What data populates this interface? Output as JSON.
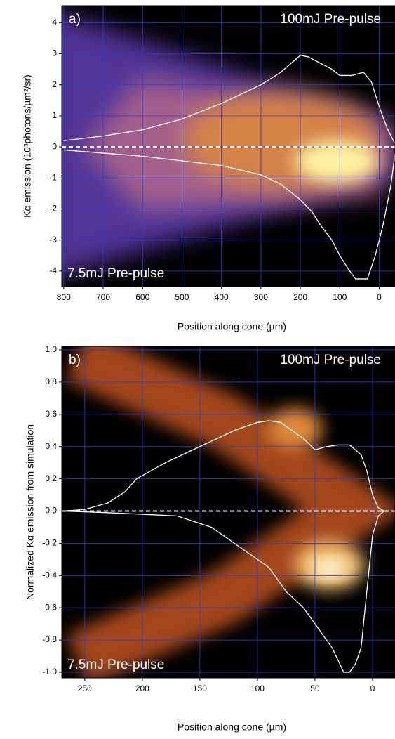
{
  "chart_data": [
    {
      "type": "line",
      "panel_label": "a)",
      "top_label": "100mJ Pre-pulse",
      "bottom_label": "7.5mJ Pre-pulse",
      "x_label": "Position along cone (µm)",
      "y_label": "Kα emission (10³photons/µm²/sr)",
      "xlim": [
        805,
        -40
      ],
      "ylim": [
        -4.5,
        4.55
      ],
      "xticks": [
        800,
        700,
        600,
        500,
        400,
        300,
        200,
        100,
        0
      ],
      "yticks": [
        -4,
        -3,
        -2,
        -1,
        0,
        1,
        2,
        3,
        4
      ],
      "grid": true,
      "series": [
        {
          "name": "100mJ Pre-pulse",
          "color": "#ffffff",
          "x": [
            800,
            700,
            600,
            500,
            400,
            300,
            250,
            200,
            180,
            150,
            120,
            100,
            70,
            40,
            20,
            0,
            -20,
            -40
          ],
          "values": [
            0.2,
            0.35,
            0.55,
            0.9,
            1.4,
            2.0,
            2.4,
            2.95,
            2.9,
            2.7,
            2.5,
            2.3,
            2.3,
            2.4,
            2.1,
            1.3,
            0.6,
            0.1
          ]
        },
        {
          "name": "7.5mJ Pre-pulse",
          "color": "#ffffff",
          "x": [
            800,
            700,
            600,
            500,
            400,
            300,
            250,
            200,
            170,
            150,
            120,
            100,
            80,
            60,
            30,
            10,
            -10,
            -30,
            -40
          ],
          "values": [
            -0.1,
            -0.2,
            -0.3,
            -0.45,
            -0.6,
            -0.9,
            -1.2,
            -1.7,
            -2.1,
            -2.5,
            -3.0,
            -3.5,
            -3.9,
            -4.25,
            -4.25,
            -3.5,
            -2.5,
            -1.2,
            -0.2
          ]
        }
      ]
    },
    {
      "type": "line",
      "panel_label": "b)",
      "top_label": "100mJ Pre-pulse",
      "bottom_label": "7.5mJ Pre-pulse",
      "x_label": "Position along cone (µm)",
      "y_label": "Normalized Kα emission from simulation",
      "xlim": [
        270,
        -19.5
      ],
      "ylim": [
        -1.035,
        1.022
      ],
      "xticks": [
        250,
        200,
        150,
        100,
        50,
        0
      ],
      "yticks": [
        {
          "value": -1,
          "label": "-1.0"
        },
        -0.8,
        -0.6,
        -0.4,
        -0.2,
        {
          "value": 0,
          "label": "0.0"
        },
        0.2,
        0.4,
        0.6,
        0.8,
        {
          "value": 1,
          "label": "1.0"
        }
      ],
      "grid": true,
      "series": [
        {
          "name": "100mJ Pre-pulse",
          "color": "#ffffff",
          "x": [
            270,
            250,
            230,
            215,
            205,
            180,
            150,
            120,
            100,
            90,
            80,
            70,
            60,
            50,
            40,
            30,
            20,
            10,
            5,
            0,
            -5,
            -10
          ],
          "values": [
            0,
            0.01,
            0.05,
            0.12,
            0.2,
            0.3,
            0.4,
            0.5,
            0.55,
            0.56,
            0.55,
            0.5,
            0.45,
            0.38,
            0.4,
            0.41,
            0.41,
            0.35,
            0.25,
            0.1,
            0.02,
            0
          ]
        },
        {
          "name": "7.5mJ Pre-pulse",
          "color": "#ffffff",
          "x": [
            270,
            230,
            170,
            140,
            110,
            90,
            75,
            60,
            45,
            35,
            25,
            20,
            15,
            10,
            5,
            0,
            -5,
            -10
          ],
          "values": [
            0,
            -0.01,
            -0.03,
            -0.1,
            -0.25,
            -0.35,
            -0.5,
            -0.6,
            -0.75,
            -0.85,
            -1.0,
            -1.0,
            -0.95,
            -0.85,
            -0.5,
            -0.15,
            -0.03,
            0
          ]
        }
      ]
    }
  ]
}
